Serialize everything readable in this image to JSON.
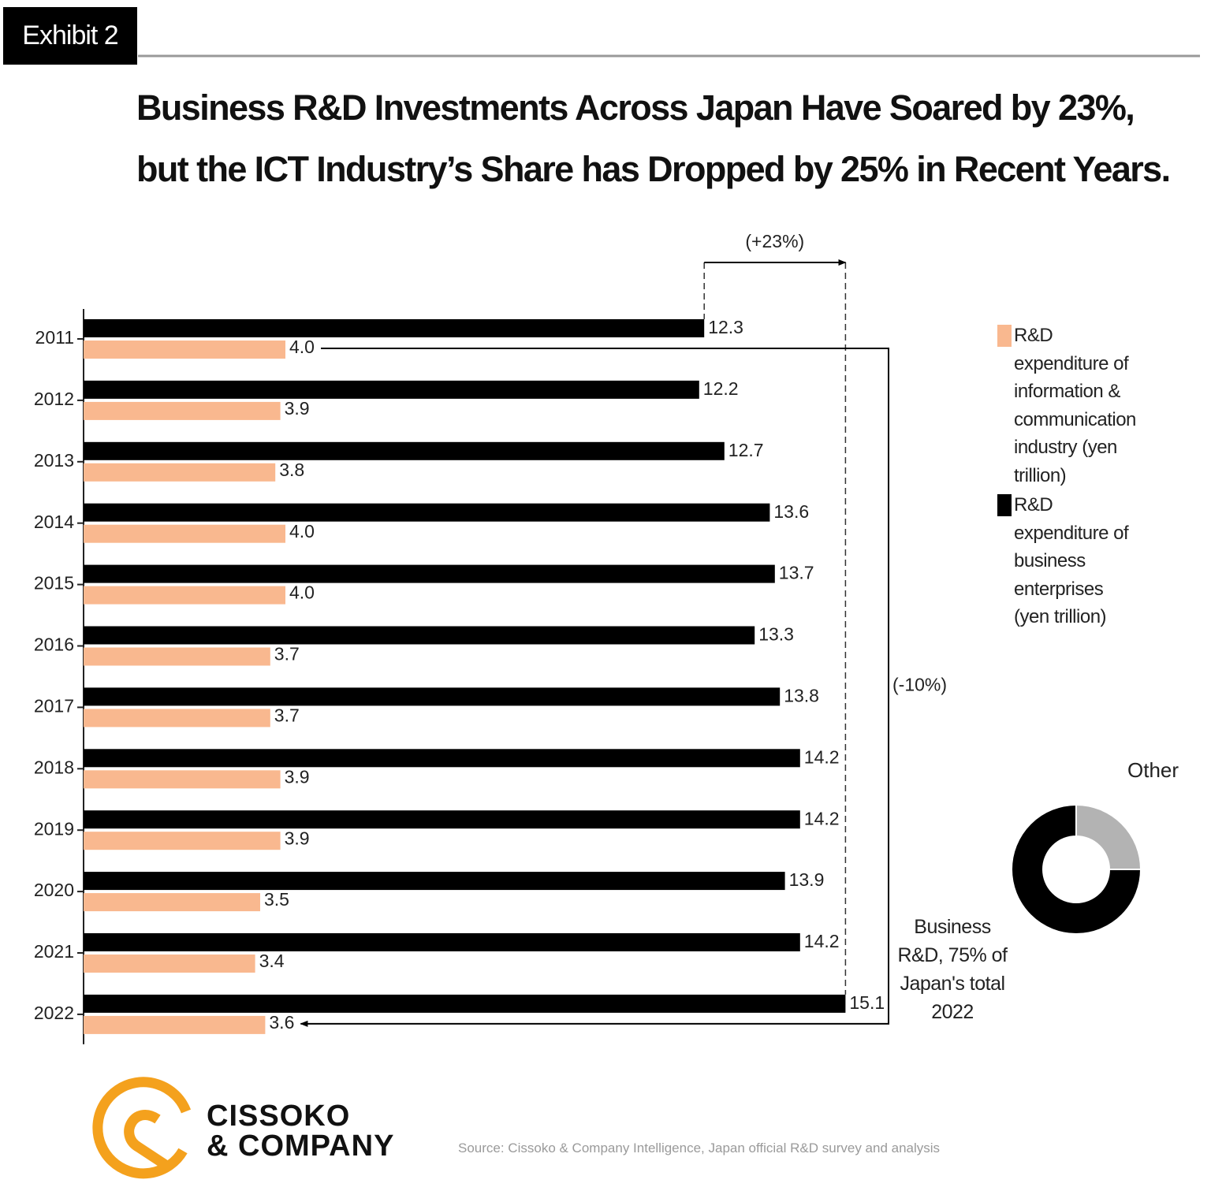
{
  "exhibit": "Exhibit 2",
  "logo": [
    "CISSOKO",
    "& COMPANY"
  ],
  "source": "Source: Cissoko & Company Intelligence, Japan official R&D survey and analysis",
  "chart_data": [
    {
      "type": "bar",
      "orientation": "horizontal",
      "title": "Business R&D Investments Across Japan Have Soared by 23%, but the ICT Industry’s Share has Dropped by 25% in Recent Years.",
      "categories": [
        "2011",
        "2012",
        "2013",
        "2014",
        "2015",
        "2016",
        "2017",
        "2018",
        "2019",
        "2020",
        "2021",
        "2022"
      ],
      "series": [
        {
          "name": "R&D expenditure of information & communication industry (yen trillion)",
          "color": "#f9b88f",
          "values": [
            4.0,
            3.9,
            3.8,
            4.0,
            4.0,
            3.7,
            3.7,
            3.9,
            3.9,
            3.5,
            3.4,
            3.6
          ],
          "value_labels": [
            "4.0",
            "3.9",
            "3.8",
            "4.0",
            "4.0",
            "3.7",
            "3.7",
            "3.9",
            "3.9",
            "3.5",
            "3.4",
            "3.6"
          ]
        },
        {
          "name": "R&D expenditure of business enterprises (yen trillion)",
          "color": "#000000",
          "values": [
            12.3,
            12.2,
            12.7,
            13.6,
            13.7,
            13.3,
            13.8,
            14.2,
            14.2,
            13.9,
            14.2,
            15.1
          ],
          "value_labels": [
            "12.3",
            "12.2",
            "12.7",
            "13.6",
            "13.7",
            "13.3",
            "13.8",
            "14.2",
            "14.2",
            "13.9",
            "14.2",
            "15.1"
          ]
        }
      ],
      "xlim": [
        0,
        16
      ],
      "annotations": [
        "(+23%)",
        "(-10%)"
      ],
      "legend": "right"
    },
    {
      "type": "pie",
      "donut": true,
      "categories": [
        "Business R&D, 75% of Japan's total 2022",
        "Other"
      ],
      "values": [
        75,
        25
      ],
      "colors": [
        "#000000",
        "#b3b3b3"
      ]
    }
  ]
}
